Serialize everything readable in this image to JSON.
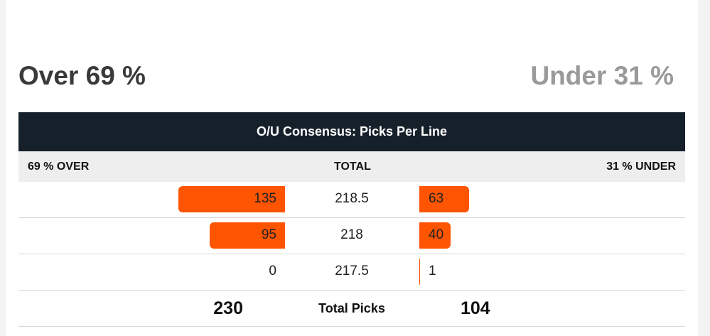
{
  "headline": {
    "over": "Over 69 %",
    "under": "Under 31 %"
  },
  "table": {
    "title": "O/U Consensus: Picks Per Line",
    "header": {
      "over": "69 %  OVER",
      "total": "TOTAL",
      "under": "31 %  UNDER"
    },
    "max_picks": 135,
    "rows": [
      {
        "over": "135",
        "line": "218.5",
        "under": "63"
      },
      {
        "over": "95",
        "line": "218",
        "under": "40"
      },
      {
        "over": "0",
        "line": "217.5",
        "under": "1"
      }
    ],
    "totals": {
      "over": "230",
      "label": "Total Picks",
      "under": "104"
    }
  },
  "colors": {
    "accent": "#ff5400",
    "title_bar": "#16202b",
    "over_headline": "#3a3a3a",
    "under_headline": "#9a9a9a"
  }
}
